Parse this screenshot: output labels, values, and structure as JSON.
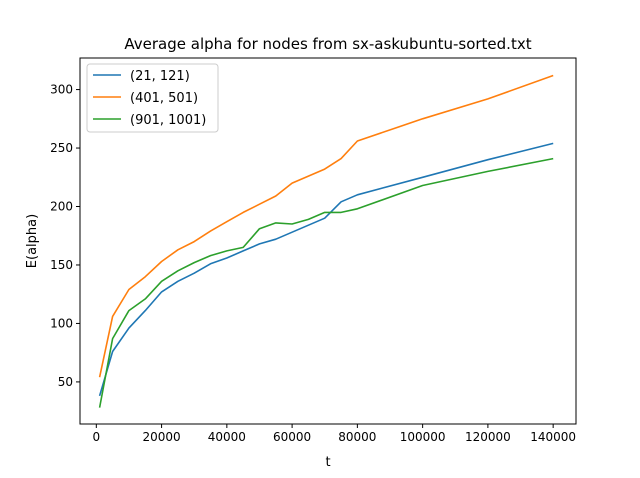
{
  "chart_data": {
    "type": "line",
    "title": "Average alpha for nodes from sx-askubuntu-sorted.txt",
    "xlabel": "t",
    "ylabel": "E(alpha)",
    "xlim": [
      -5000,
      147000
    ],
    "ylim": [
      14,
      327
    ],
    "xticks": [
      0,
      20000,
      40000,
      60000,
      80000,
      100000,
      120000,
      140000
    ],
    "xtick_labels": [
      "0",
      "20000",
      "40000",
      "60000",
      "80000",
      "100000",
      "120000",
      "140000"
    ],
    "yticks": [
      50,
      100,
      150,
      200,
      250,
      300
    ],
    "ytick_labels": [
      "50",
      "100",
      "150",
      "200",
      "250",
      "300"
    ],
    "grid": false,
    "legend_position": "top-left",
    "series": [
      {
        "name": "(21, 121)",
        "color": "#1f77b4",
        "x": [
          1000,
          5000,
          10000,
          15000,
          20000,
          25000,
          30000,
          35000,
          40000,
          45000,
          50000,
          55000,
          60000,
          65000,
          70000,
          75000,
          80000,
          100000,
          120000,
          140000
        ],
        "y": [
          38,
          76,
          96,
          111,
          127,
          136,
          143,
          151,
          156,
          162,
          168,
          172,
          178,
          184,
          190,
          204,
          210,
          225,
          240,
          254
        ]
      },
      {
        "name": "(401, 501)",
        "color": "#ff7f0e",
        "x": [
          1000,
          5000,
          10000,
          15000,
          20000,
          25000,
          30000,
          35000,
          40000,
          45000,
          50000,
          55000,
          60000,
          65000,
          70000,
          75000,
          80000,
          100000,
          120000,
          140000
        ],
        "y": [
          54,
          106,
          129,
          140,
          153,
          163,
          170,
          179,
          187,
          195,
          202,
          209,
          220,
          226,
          232,
          241,
          256,
          275,
          292,
          312
        ]
      },
      {
        "name": "(901, 1001)",
        "color": "#2ca02c",
        "x": [
          1000,
          5000,
          10000,
          15000,
          20000,
          25000,
          30000,
          35000,
          40000,
          45000,
          50000,
          55000,
          60000,
          65000,
          70000,
          75000,
          80000,
          100000,
          120000,
          140000
        ],
        "y": [
          28,
          87,
          111,
          121,
          136,
          145,
          152,
          158,
          162,
          165,
          181,
          186,
          185,
          189,
          195,
          195,
          198,
          218,
          230,
          241
        ]
      }
    ]
  }
}
